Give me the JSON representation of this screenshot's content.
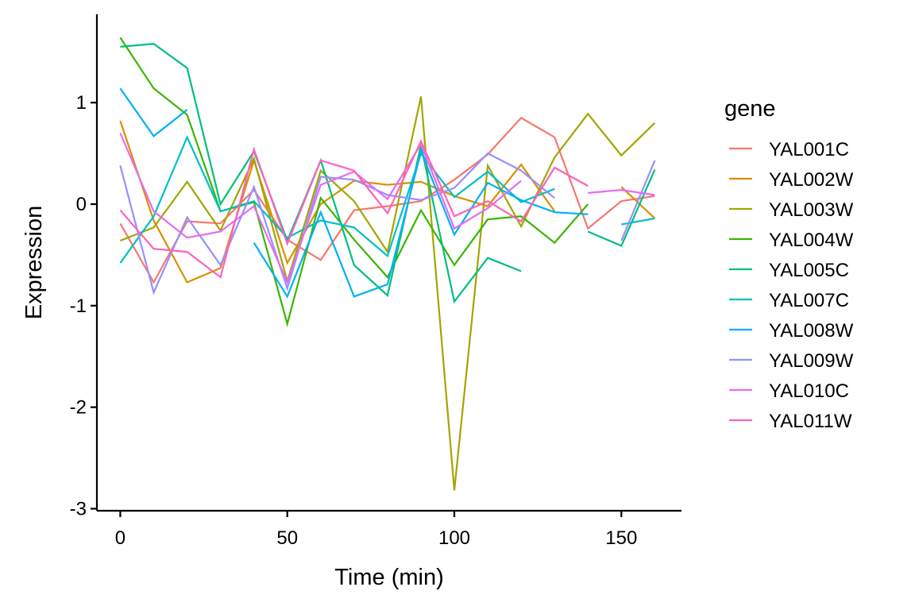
{
  "chart_data": {
    "type": "line",
    "xlabel": "Time (min)",
    "ylabel": "Expression",
    "xlim": [
      -7,
      168
    ],
    "ylim": [
      -3.02,
      1.87
    ],
    "xticks": [
      0,
      50,
      100,
      150
    ],
    "yticks": [
      1,
      0,
      -1,
      -2,
      -3
    ],
    "grid": false,
    "legend": {
      "title": "gene",
      "position": "right"
    },
    "series": [
      {
        "name": "YAL001C",
        "color": "#F8766D",
        "x": [
          0,
          10,
          20,
          30,
          40,
          50,
          60,
          70,
          80,
          90,
          100,
          110,
          120,
          130,
          140,
          150,
          160
        ],
        "y": [
          -0.19,
          -0.77,
          -0.17,
          -0.19,
          0.14,
          -0.35,
          -0.55,
          -0.06,
          -0.02,
          0.03,
          0.24,
          0.49,
          0.85,
          0.66,
          -0.24,
          0.03,
          0.08
        ]
      },
      {
        "name": "YAL002W",
        "color": "#D89000",
        "x": [
          0,
          10,
          20,
          30,
          40,
          50,
          60,
          70,
          80,
          90,
          100,
          110,
          120,
          130,
          null,
          150,
          160
        ],
        "y": [
          0.82,
          -0.16,
          -0.77,
          -0.63,
          0.43,
          -0.58,
          0.0,
          0.23,
          0.19,
          0.22,
          0.08,
          -0.02,
          0.39,
          -0.07,
          null,
          0.17,
          -0.14
        ]
      },
      {
        "name": "YAL003W",
        "color": "#A3A500",
        "x": [
          0,
          10,
          20,
          30,
          40,
          50,
          60,
          70,
          80,
          90,
          100,
          110,
          120,
          130,
          140,
          150,
          160
        ],
        "y": [
          -0.36,
          -0.23,
          0.22,
          -0.26,
          0.45,
          -0.76,
          0.33,
          0.03,
          -0.47,
          1.06,
          -2.82,
          0.38,
          -0.22,
          0.46,
          0.89,
          0.48,
          0.8
        ]
      },
      {
        "name": "YAL004W",
        "color": "#39B600",
        "x": [
          0,
          10,
          20,
          30,
          40,
          50,
          60,
          70,
          80,
          90,
          100,
          110,
          120,
          130,
          140
        ],
        "y": [
          1.64,
          1.14,
          0.88,
          -0.07,
          0.02,
          -1.18,
          0.06,
          -0.35,
          -0.72,
          -0.06,
          -0.6,
          -0.15,
          -0.12,
          -0.38,
          0.0
        ]
      },
      {
        "name": "YAL005C",
        "color": "#00BF7D",
        "x": [
          0,
          10,
          20,
          30,
          40,
          50,
          60,
          70,
          80,
          90,
          100,
          110,
          120,
          null,
          140,
          150,
          160
        ],
        "y": [
          1.55,
          1.58,
          1.34,
          0.0,
          0.52,
          -0.36,
          0.43,
          -0.6,
          -0.9,
          0.58,
          -0.96,
          -0.53,
          -0.66,
          null,
          -0.27,
          -0.41,
          0.34
        ]
      },
      {
        "name": "YAL007C",
        "color": "#00BFC4",
        "x": [
          0,
          10,
          20,
          30,
          40,
          50,
          60,
          70,
          80,
          90,
          100,
          110,
          120,
          130,
          null,
          150,
          160
        ],
        "y": [
          -0.58,
          -0.12,
          0.66,
          -0.07,
          0.03,
          -0.33,
          -0.16,
          -0.23,
          -0.51,
          0.5,
          0.07,
          0.32,
          0.02,
          0.15,
          null,
          -0.2,
          -0.14
        ]
      },
      {
        "name": "YAL008W",
        "color": "#00B0F6",
        "x": [
          0,
          10,
          20,
          null,
          40,
          50,
          60,
          70,
          80,
          90,
          100,
          110,
          120,
          130,
          140
        ],
        "y": [
          1.14,
          0.67,
          0.93,
          null,
          -0.38,
          -0.91,
          -0.08,
          -0.91,
          -0.79,
          0.52,
          -0.3,
          0.21,
          0.04,
          -0.08,
          -0.1
        ]
      },
      {
        "name": "YAL009W",
        "color": "#9590FF",
        "x": [
          0,
          10,
          20,
          30,
          40,
          50,
          60,
          70,
          80,
          90,
          100,
          110,
          120,
          130,
          null,
          150,
          160
        ],
        "y": [
          0.38,
          -0.87,
          -0.13,
          -0.6,
          0.17,
          -0.83,
          0.27,
          0.24,
          0.09,
          0.04,
          0.16,
          0.5,
          0.33,
          0.06,
          null,
          -0.36,
          0.43
        ]
      },
      {
        "name": "YAL010C",
        "color": "#E76BF3",
        "x": [
          0,
          10,
          20,
          30,
          40,
          50,
          60,
          70,
          80,
          90,
          100,
          110,
          120,
          null,
          140,
          150,
          160
        ],
        "y": [
          0.7,
          -0.07,
          -0.33,
          -0.27,
          -0.02,
          -0.77,
          0.19,
          0.32,
          0.05,
          0.59,
          -0.24,
          -0.04,
          0.23,
          null,
          0.11,
          0.14,
          0.09
        ]
      },
      {
        "name": "YAL011W",
        "color": "#FF62BC",
        "x": [
          0,
          10,
          20,
          30,
          40,
          50,
          60,
          70,
          80,
          90,
          100,
          110,
          120,
          130,
          140
        ],
        "y": [
          -0.06,
          -0.44,
          -0.47,
          -0.72,
          0.54,
          -0.39,
          0.43,
          0.33,
          -0.09,
          0.62,
          -0.12,
          0.03,
          -0.17,
          0.36,
          0.18
        ]
      }
    ]
  }
}
